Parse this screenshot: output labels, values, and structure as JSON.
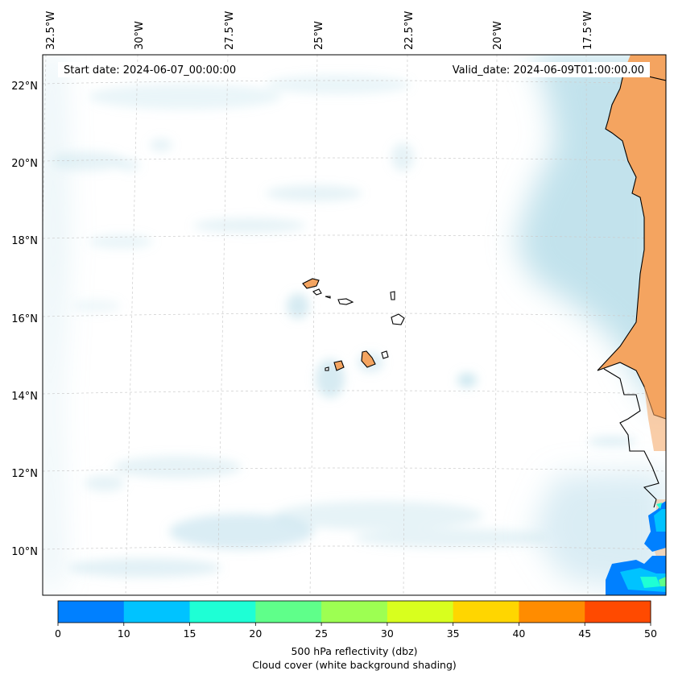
{
  "annotations": {
    "start_date": "Start date: 2024-06-07_00:00:00",
    "valid_date": "Valid_date: 2024-06-09T01:00:00.00"
  },
  "lon_labels": [
    "32.5°W",
    "30°W",
    "27.5°W",
    "25°W",
    "22.5°W",
    "20°W",
    "17.5°W"
  ],
  "lat_labels": [
    "22°N",
    "20°N",
    "18°N",
    "16°N",
    "14°N",
    "12°N",
    "10°N"
  ],
  "colorbar": {
    "ticks": [
      "0",
      "10",
      "15",
      "20",
      "25",
      "30",
      "35",
      "40",
      "45",
      "50"
    ],
    "bin_colors": [
      "#0080ff",
      "#00c3ff",
      "#1effd5",
      "#5fff8a",
      "#9dff52",
      "#d8ff1e",
      "#ffd600",
      "#ff8c00",
      "#ff4a00"
    ],
    "label_line1": "500 hPa reflectivity (dbz)",
    "label_line2": "Cloud cover (white background shading)"
  },
  "colors": {
    "land": "#f4a460",
    "cloud": "#add8e6",
    "coastline": "#000000",
    "gridline": "#cccccc"
  }
}
